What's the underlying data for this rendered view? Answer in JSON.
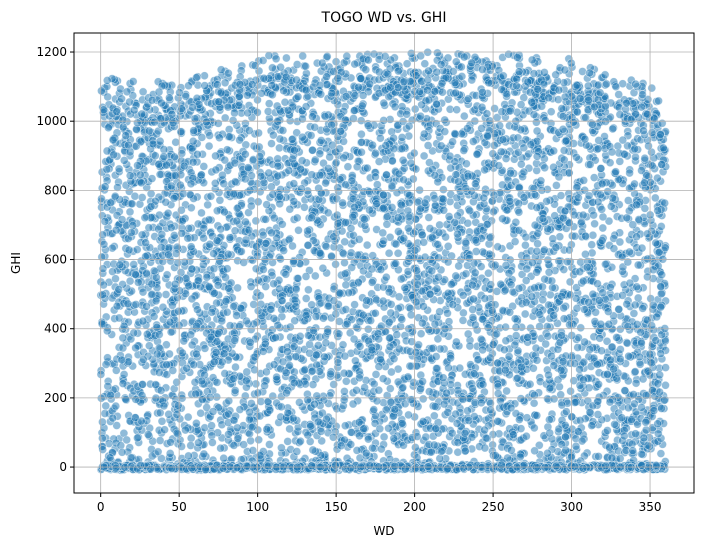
{
  "chart_data": {
    "type": "scatter",
    "title": "TOGO WD vs. GHI",
    "xlabel": "WD",
    "ylabel": "GHI",
    "xlim": [
      -17,
      378
    ],
    "ylim": [
      -75,
      1255
    ],
    "x_ticks": [
      0,
      50,
      100,
      150,
      200,
      250,
      300,
      350
    ],
    "y_ticks": [
      0,
      200,
      400,
      600,
      800,
      1000,
      1200
    ],
    "grid": true,
    "legend": "none",
    "marker_color": "#1f77b4",
    "marker_edge_color": "#ffffff",
    "marker_alpha": 0.5,
    "x_range": [
      0,
      360
    ],
    "y_range": [
      -10,
      1200
    ],
    "envelope": [
      {
        "wd": 0,
        "ghi_max": 1130
      },
      {
        "wd": 20,
        "ghi_max": 1120
      },
      {
        "wd": 50,
        "ghi_max": 1110
      },
      {
        "wd": 100,
        "ghi_max": 1190
      },
      {
        "wd": 150,
        "ghi_max": 1190
      },
      {
        "wd": 200,
        "ghi_max": 1200
      },
      {
        "wd": 250,
        "ghi_max": 1200
      },
      {
        "wd": 300,
        "ghi_max": 1180
      },
      {
        "wd": 330,
        "ghi_max": 1130
      },
      {
        "wd": 350,
        "ghi_max": 1110
      },
      {
        "wd": 360,
        "ghi_max": 1060
      }
    ]
  }
}
